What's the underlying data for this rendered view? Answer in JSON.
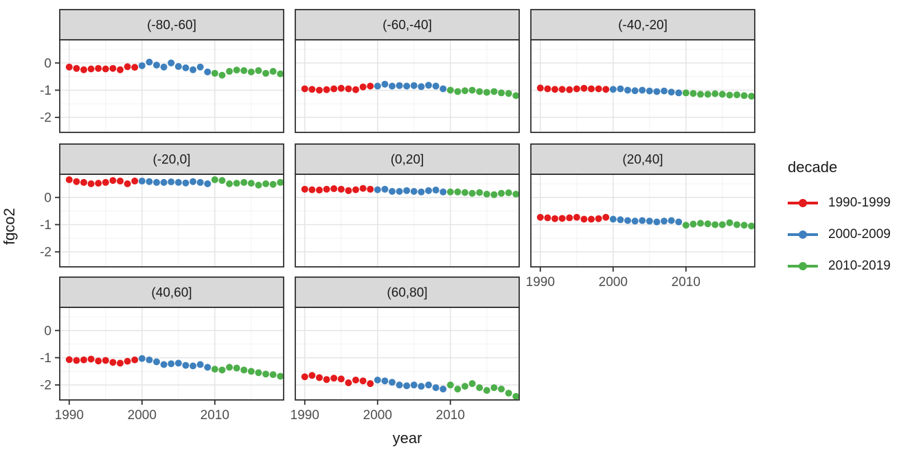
{
  "figure": {
    "x_axis_title": "year",
    "y_axis_title": "fgco2",
    "legend_title": "decade"
  },
  "chart_data": {
    "type": "scatter",
    "title": "",
    "xlabel": "year",
    "ylabel": "fgco2",
    "legend_title": "decade",
    "legend_position": "right",
    "grid": true,
    "xlim": [
      1988.7,
      2019.45
    ],
    "ylim": [
      -2.55,
      0.85
    ],
    "x_ticks": [
      1990,
      2000,
      2010
    ],
    "x_minor_ticks": [
      1995,
      2005,
      2015
    ],
    "y_ticks": [
      0,
      -1,
      -2
    ],
    "y_minor_ticks": [
      0.5,
      -0.5,
      -1.5,
      -2.5
    ],
    "years": [
      1990,
      1991,
      1992,
      1993,
      1994,
      1995,
      1996,
      1997,
      1998,
      1999,
      2000,
      2001,
      2002,
      2003,
      2004,
      2005,
      2006,
      2007,
      2008,
      2009,
      2010,
      2011,
      2012,
      2013,
      2014,
      2015,
      2016,
      2017,
      2018,
      2019
    ],
    "decades": [
      {
        "name": "1990-1999",
        "start": 1990,
        "color": "#E41A1C"
      },
      {
        "name": "2000-2009",
        "start": 2000,
        "color": "#3E80BD"
      },
      {
        "name": "2010-2019",
        "start": 2010,
        "color": "#4DAF4A"
      }
    ],
    "facets": [
      {
        "label": "(-80,-60]",
        "values": {
          "1990-1999": [
            -0.15,
            -0.2,
            -0.25,
            -0.22,
            -0.2,
            -0.22,
            -0.2,
            -0.25,
            -0.14,
            -0.16
          ],
          "2000-2009": [
            -0.1,
            0.03,
            -0.08,
            -0.15,
            0.0,
            -0.13,
            -0.18,
            -0.25,
            -0.15,
            -0.33
          ],
          "2010-2019": [
            -0.38,
            -0.45,
            -0.31,
            -0.26,
            -0.28,
            -0.33,
            -0.28,
            -0.38,
            -0.31,
            -0.4
          ]
        }
      },
      {
        "label": "(-60,-40]",
        "values": {
          "1990-1999": [
            -0.95,
            -0.97,
            -1.0,
            -0.98,
            -0.95,
            -0.93,
            -0.95,
            -0.98,
            -0.88,
            -0.85
          ],
          "2000-2009": [
            -0.85,
            -0.78,
            -0.85,
            -0.83,
            -0.85,
            -0.83,
            -0.87,
            -0.82,
            -0.85,
            -0.95
          ],
          "2010-2019": [
            -1.0,
            -1.05,
            -1.02,
            -1.0,
            -1.05,
            -1.08,
            -1.05,
            -1.1,
            -1.12,
            -1.2
          ]
        }
      },
      {
        "label": "(-40,-20]",
        "values": {
          "1990-1999": [
            -0.92,
            -0.95,
            -0.97,
            -0.97,
            -0.98,
            -0.95,
            -0.93,
            -0.95,
            -0.95,
            -0.97
          ],
          "2000-2009": [
            -0.97,
            -0.95,
            -1.0,
            -1.02,
            -1.0,
            -1.03,
            -1.05,
            -1.03,
            -1.07,
            -1.1
          ],
          "2010-2019": [
            -1.1,
            -1.12,
            -1.15,
            -1.15,
            -1.13,
            -1.15,
            -1.18,
            -1.17,
            -1.2,
            -1.22
          ]
        }
      },
      {
        "label": "(-20,0]",
        "values": {
          "1990-1999": [
            0.65,
            0.58,
            0.55,
            0.5,
            0.52,
            0.55,
            0.62,
            0.6,
            0.5,
            0.6
          ],
          "2000-2009": [
            0.6,
            0.58,
            0.55,
            0.55,
            0.57,
            0.55,
            0.53,
            0.58,
            0.55,
            0.5
          ],
          "2010-2019": [
            0.65,
            0.62,
            0.5,
            0.52,
            0.55,
            0.52,
            0.45,
            0.5,
            0.48,
            0.55
          ]
        }
      },
      {
        "label": "(0,20]",
        "values": {
          "1990-1999": [
            0.3,
            0.28,
            0.27,
            0.3,
            0.32,
            0.3,
            0.25,
            0.28,
            0.33,
            0.3
          ],
          "2000-2009": [
            0.28,
            0.3,
            0.22,
            0.22,
            0.25,
            0.22,
            0.2,
            0.25,
            0.27,
            0.2
          ],
          "2010-2019": [
            0.2,
            0.2,
            0.18,
            0.15,
            0.18,
            0.12,
            0.1,
            0.15,
            0.17,
            0.12
          ]
        }
      },
      {
        "label": "(20,40]",
        "values": {
          "1990-1999": [
            -0.73,
            -0.75,
            -0.78,
            -0.77,
            -0.75,
            -0.73,
            -0.8,
            -0.8,
            -0.78,
            -0.73
          ],
          "2000-2009": [
            -0.8,
            -0.82,
            -0.85,
            -0.87,
            -0.85,
            -0.87,
            -0.9,
            -0.87,
            -0.85,
            -0.9
          ],
          "2010-2019": [
            -1.02,
            -0.98,
            -0.95,
            -0.97,
            -1.0,
            -1.0,
            -0.93,
            -1.0,
            -1.02,
            -1.05
          ]
        }
      },
      {
        "label": "(40,60]",
        "values": {
          "1990-1999": [
            -1.07,
            -1.1,
            -1.08,
            -1.05,
            -1.12,
            -1.1,
            -1.17,
            -1.2,
            -1.13,
            -1.08
          ],
          "2000-2009": [
            -1.03,
            -1.08,
            -1.15,
            -1.25,
            -1.22,
            -1.2,
            -1.28,
            -1.3,
            -1.25,
            -1.35
          ],
          "2010-2019": [
            -1.42,
            -1.45,
            -1.35,
            -1.38,
            -1.45,
            -1.5,
            -1.55,
            -1.6,
            -1.62,
            -1.68
          ]
        }
      },
      {
        "label": "(60,80]",
        "values": {
          "1990-1999": [
            -1.7,
            -1.65,
            -1.73,
            -1.8,
            -1.75,
            -1.78,
            -1.92,
            -1.82,
            -1.85,
            -1.95
          ],
          "2000-2009": [
            -1.82,
            -1.85,
            -1.9,
            -2.0,
            -2.03,
            -2.0,
            -2.05,
            -2.0,
            -2.1,
            -2.15
          ],
          "2010-2019": [
            -2.0,
            -2.15,
            -2.05,
            -1.95,
            -2.1,
            -2.2,
            -2.1,
            -2.15,
            -2.3,
            -2.42
          ]
        }
      }
    ]
  },
  "style": {
    "background": "#FFFFFF",
    "strip_background": "#D9D9D9",
    "panel_border": "#2F2F2F",
    "grid_major": "#E4E4E4",
    "grid_minor": "#F0F0F0",
    "tick_text": "#4D4D4D",
    "title_text": "#1A1A1A"
  }
}
